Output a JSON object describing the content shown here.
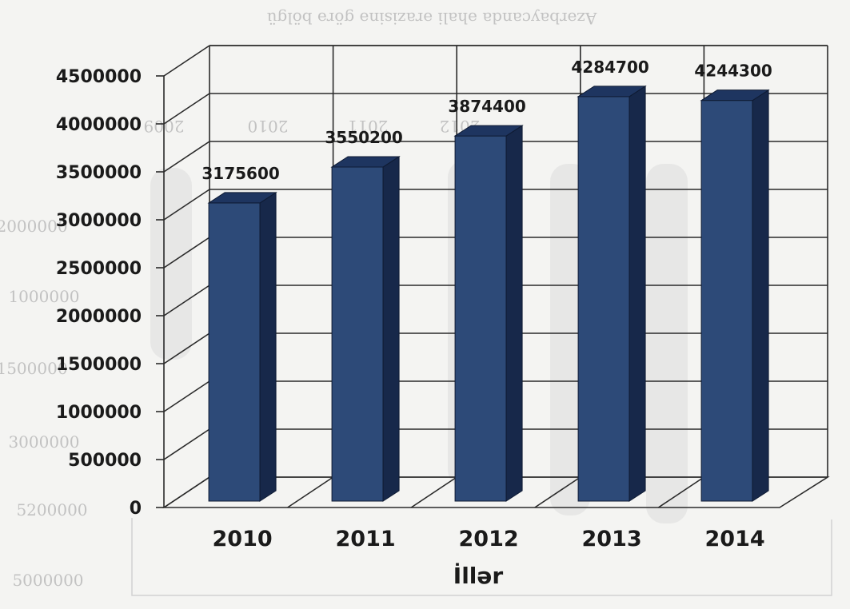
{
  "chart_data": {
    "type": "bar",
    "style": "3d-column",
    "categories": [
      "2010",
      "2011",
      "2012",
      "2013",
      "2014"
    ],
    "values": [
      3175600,
      3550200,
      3874400,
      4284700,
      4244300
    ],
    "data_labels": [
      "3175600",
      "3550200",
      "3874400",
      "4284700",
      "4244300"
    ],
    "xlabel": "İllər",
    "ylabel": "",
    "title": "",
    "ylim": [
      0,
      4500000
    ],
    "yticks": [
      0,
      500000,
      1000000,
      1500000,
      2000000,
      2500000,
      3000000,
      3500000,
      4000000,
      4500000
    ],
    "ytick_labels": [
      "0",
      "500000",
      "1000000",
      "1500000",
      "2000000",
      "2500000",
      "3000000",
      "3500000",
      "4000000",
      "4500000"
    ],
    "grid": true,
    "legend": "none",
    "colors": {
      "bar_front": "#2d4a78",
      "bar_side": "#17284a",
      "bar_top": "#1e3560",
      "background": "#f4f4f2"
    }
  },
  "bleed_through": {
    "header": "Azərbaycanda əhali ərazisinə görə bölgü",
    "years": [
      "2009",
      "2010",
      "2011",
      "2012"
    ],
    "side_values": [
      "2000000",
      "1000000",
      "1500000",
      "3000000",
      "5200000",
      "5000000"
    ]
  }
}
